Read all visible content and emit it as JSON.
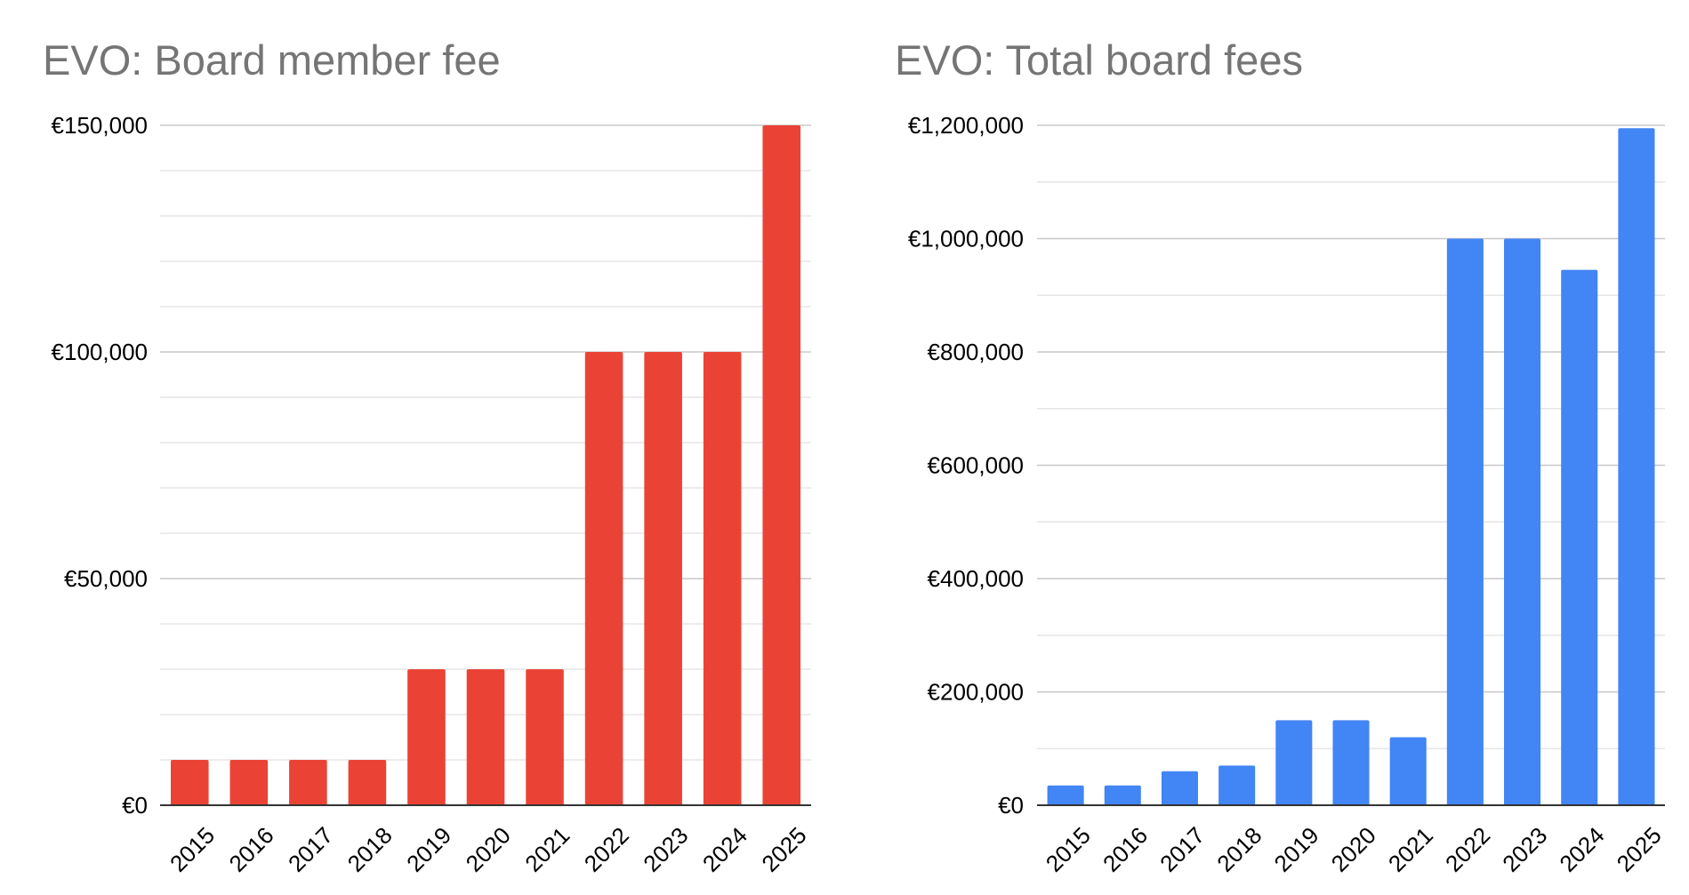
{
  "chart_data": [
    {
      "type": "bar",
      "title": "EVO: Board member fee",
      "xlabel": "",
      "ylabel": "",
      "categories": [
        "2015",
        "2016",
        "2017",
        "2018",
        "2019",
        "2020",
        "2021",
        "2022",
        "2023",
        "2024",
        "2025"
      ],
      "values": [
        10000,
        10000,
        10000,
        10000,
        30000,
        30000,
        30000,
        100000,
        100000,
        100000,
        150000
      ],
      "ylim": [
        0,
        150000
      ],
      "yticks": [
        0,
        50000,
        100000,
        150000
      ],
      "ytick_labels": [
        "€0",
        "€50,000",
        "€100,000",
        "€150,000"
      ],
      "minor_gridline_step": 10000,
      "grid": true,
      "legend": "none",
      "color": "#EA4335"
    },
    {
      "type": "bar",
      "title": "EVO: Total board fees",
      "xlabel": "",
      "ylabel": "",
      "categories": [
        "2015",
        "2016",
        "2017",
        "2018",
        "2019",
        "2020",
        "2021",
        "2022",
        "2023",
        "2024",
        "2025"
      ],
      "values": [
        35000,
        35000,
        60000,
        70000,
        150000,
        150000,
        120000,
        1000000,
        1000000,
        945000,
        1195000
      ],
      "ylim": [
        0,
        1200000
      ],
      "yticks": [
        0,
        200000,
        400000,
        600000,
        800000,
        1000000,
        1200000
      ],
      "ytick_labels": [
        "€0",
        "€200,000",
        "€400,000",
        "€600,000",
        "€800,000",
        "€1,000,000",
        "€1,200,000"
      ],
      "minor_gridline_step": 100000,
      "grid": true,
      "legend": "none",
      "color": "#4285F4"
    }
  ]
}
